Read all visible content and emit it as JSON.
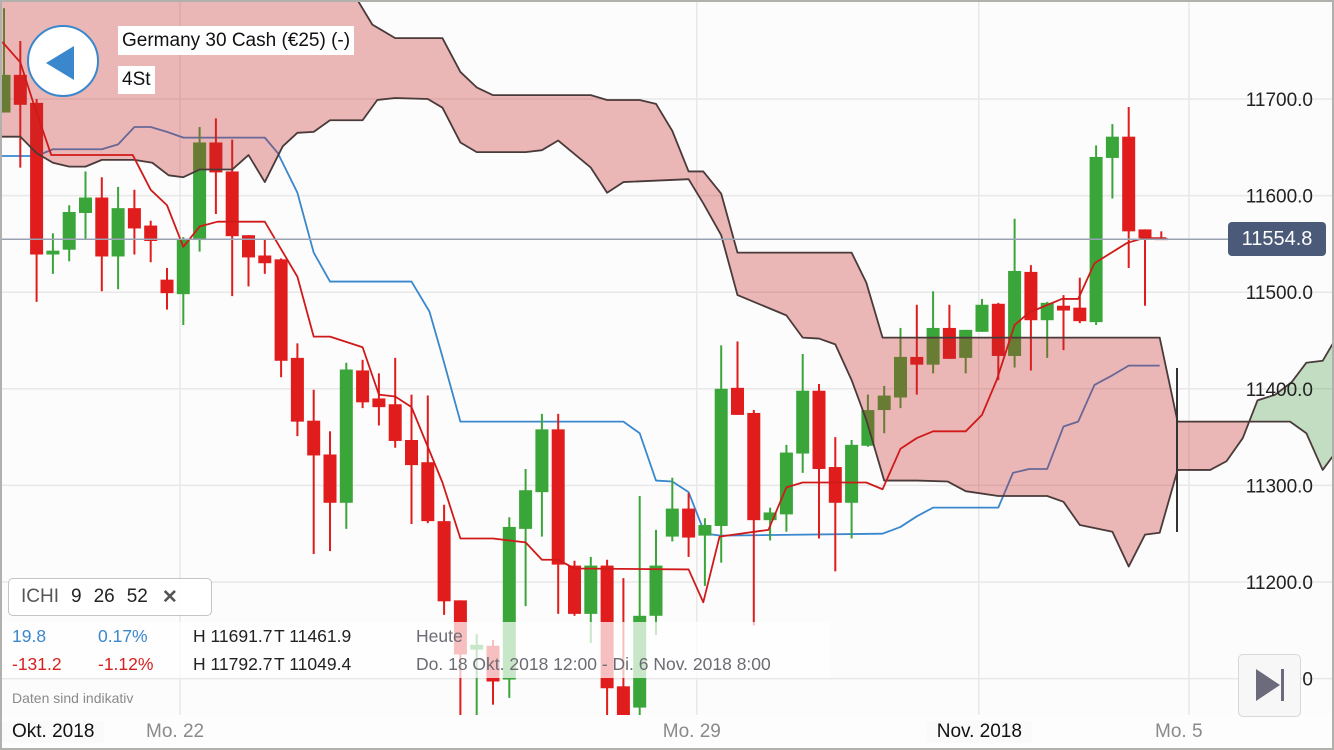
{
  "header": {
    "instrument_title": "Germany 30 Cash (€25) (-)",
    "timeframe": "4St",
    "back_icon": "triangle-left-icon"
  },
  "indicator": {
    "name": "ICHI",
    "param1": "9",
    "param2": "26",
    "param3": "52",
    "close_symbol": "✕"
  },
  "stats": {
    "today": {
      "change": "19.8",
      "change_pct": "0.17%",
      "high": "H 11691.7",
      "low": "T 11461.9",
      "period": "Heute"
    },
    "range": {
      "change": "-131.2",
      "change_pct": "-1.12%",
      "high": "H 11792.7",
      "low": "T 11049.4",
      "period": "Do. 18 Okt. 2018 12:00 - Di. 6 Nov. 2018 8:00"
    }
  },
  "disclaimer": "Daten sind indikativ",
  "last_price_label": "11554.8",
  "colors": {
    "up": "#3aa63a",
    "down": "#e01c1c",
    "tenkan": "#d01a1a",
    "kijun": "#3a87cd",
    "cloud_bearish": "#c62b2b",
    "cloud_bullish": "#3c963c",
    "cloud_edge": "#4a3a3a",
    "last_price": "#4a5a78"
  },
  "chart_data": {
    "type": "candlestick",
    "x_unit": "4-hour bar index",
    "y_ticks": [
      "11700.0",
      "11600.0",
      "11500.0",
      "11400.0",
      "11300.0",
      "11200.0",
      "11100.0"
    ],
    "y_tick_values": [
      11700,
      11600,
      11500,
      11400,
      11300,
      11200,
      11100
    ],
    "x_ticks": [
      {
        "label": "Okt. 2018",
        "bar": -1,
        "major": true
      },
      {
        "label": "Mo. 22",
        "bar": 10.8,
        "major": false
      },
      {
        "label": "Mo. 29",
        "bar": 42.5,
        "major": false
      },
      {
        "label": "Nov. 2018",
        "bar": 59.8,
        "major": true
      },
      {
        "label": "Mo. 5",
        "bar": 72.7,
        "major": false
      }
    ],
    "grid": true,
    "last_price": 11554.8,
    "ohlc_order": [
      "open",
      "high",
      "low",
      "close"
    ],
    "candles": [
      [
        11686,
        11794,
        11686,
        11725
      ],
      [
        11725,
        11760,
        11629,
        11694
      ],
      [
        11696,
        11700,
        11490,
        11539
      ],
      [
        11539,
        11561,
        11519,
        11543
      ],
      [
        11544,
        11590,
        11532,
        11583
      ],
      [
        11582,
        11625,
        11555,
        11598
      ],
      [
        11598,
        11619,
        11501,
        11537
      ],
      [
        11537,
        11609,
        11503,
        11587
      ],
      [
        11587,
        11606,
        11539,
        11566
      ],
      [
        11569,
        11574,
        11531,
        11553
      ],
      [
        11513,
        11525,
        11482,
        11499
      ],
      [
        11498,
        11557,
        11466,
        11554
      ],
      [
        11554,
        11671,
        11542,
        11655
      ],
      [
        11655,
        11680,
        11581,
        11624
      ],
      [
        11625,
        11658,
        11496,
        11558
      ],
      [
        11559,
        11559,
        11506,
        11536
      ],
      [
        11538,
        11555,
        11519,
        11530
      ],
      [
        11534,
        11535,
        11412,
        11429
      ],
      [
        11432,
        11447,
        11351,
        11366
      ],
      [
        11367,
        11399,
        11229,
        11331
      ],
      [
        11332,
        11356,
        11232,
        11282
      ],
      [
        11282,
        11427,
        11255,
        11420
      ],
      [
        11419,
        11430,
        11380,
        11386
      ],
      [
        11390,
        11416,
        11362,
        11381
      ],
      [
        11384,
        11432,
        11339,
        11346
      ],
      [
        11347,
        11394,
        11260,
        11321
      ],
      [
        11324,
        11393,
        11261,
        11263
      ],
      [
        11263,
        11280,
        11166,
        11180
      ],
      [
        11181,
        11181,
        11055,
        11125
      ],
      [
        11130,
        11146,
        11060,
        11135
      ],
      [
        11134,
        11140,
        11073,
        11097
      ],
      [
        11099,
        11267,
        11080,
        11257
      ],
      [
        11255,
        11317,
        11175,
        11295
      ],
      [
        11293,
        11374,
        11247,
        11358
      ],
      [
        11358,
        11374,
        11167,
        11218
      ],
      [
        11217,
        11222,
        11165,
        11167
      ],
      [
        11167,
        11226,
        11137,
        11217
      ],
      [
        11217,
        11223,
        11060,
        11090
      ],
      [
        11092,
        11204,
        11049.4,
        11055
      ],
      [
        11070,
        11289,
        11055,
        11165
      ],
      [
        11165,
        11254,
        11145,
        11217
      ],
      [
        11247,
        11308,
        11242,
        11276
      ],
      [
        11276,
        11292,
        11226,
        11246
      ],
      [
        11248,
        11266,
        11196,
        11259
      ],
      [
        11258,
        11445,
        11220,
        11400
      ],
      [
        11401,
        11449,
        11373,
        11373
      ],
      [
        11375,
        11378,
        11155,
        11264
      ],
      [
        11264,
        11277,
        11243,
        11272
      ],
      [
        11270,
        11342,
        11252,
        11334
      ],
      [
        11333,
        11436,
        11313,
        11398
      ],
      [
        11398,
        11405,
        11245,
        11317
      ],
      [
        11319,
        11350,
        11211,
        11282
      ],
      [
        11282,
        11347,
        11245,
        11342
      ],
      [
        11341,
        11394,
        11340,
        11378
      ],
      [
        11378,
        11403,
        11354,
        11393
      ],
      [
        11391,
        11463,
        11380,
        11433
      ],
      [
        11433,
        11487,
        11394,
        11425
      ],
      [
        11425,
        11501,
        11416,
        11463
      ],
      [
        11463,
        11487,
        11431,
        11431
      ],
      [
        11432,
        11461,
        11416,
        11461
      ],
      [
        11459,
        11493,
        11459,
        11487
      ],
      [
        11488,
        11489,
        11409,
        11434
      ],
      [
        11434,
        11576,
        11422,
        11522
      ],
      [
        11521,
        11528,
        11419,
        11471
      ],
      [
        11471,
        11490,
        11432,
        11489
      ],
      [
        11486,
        11497,
        11440,
        11481
      ],
      [
        11484,
        11515,
        11468,
        11470
      ],
      [
        11469,
        11652,
        11466,
        11640
      ],
      [
        11639,
        11674,
        11597,
        11661
      ],
      [
        11661,
        11691.7,
        11525,
        11563
      ],
      [
        11565,
        11565,
        11486,
        11556
      ],
      [
        11556,
        11563,
        11554,
        11554.8
      ]
    ],
    "tenkan_sen": [
      [
        -0.1,
        11759
      ],
      [
        1,
        11738
      ],
      [
        1.8,
        11696
      ],
      [
        2.9,
        11642
      ],
      [
        7.9,
        11642
      ],
      [
        9,
        11606
      ],
      [
        10,
        11590
      ],
      [
        11,
        11547
      ],
      [
        12,
        11568
      ],
      [
        13.1,
        11573
      ],
      [
        16,
        11573
      ],
      [
        18,
        11516
      ],
      [
        19,
        11454
      ],
      [
        20,
        11454
      ],
      [
        22,
        11443
      ],
      [
        23,
        11394
      ],
      [
        24,
        11392
      ],
      [
        25,
        11381
      ],
      [
        26.9,
        11303
      ],
      [
        28,
        11245
      ],
      [
        30,
        11245
      ],
      [
        32,
        11241
      ],
      [
        33,
        11223
      ],
      [
        34,
        11223
      ],
      [
        35,
        11214
      ],
      [
        42,
        11213
      ],
      [
        42.9,
        11179
      ],
      [
        43.9,
        11247
      ],
      [
        46.9,
        11254
      ],
      [
        48,
        11298
      ],
      [
        49,
        11303
      ],
      [
        52.9,
        11303
      ],
      [
        53.9,
        11296
      ],
      [
        55,
        11338
      ],
      [
        56,
        11349
      ],
      [
        57,
        11356
      ],
      [
        59,
        11356
      ],
      [
        60,
        11373
      ],
      [
        60.9,
        11409
      ],
      [
        62,
        11466
      ],
      [
        62.9,
        11479
      ],
      [
        64.9,
        11493
      ],
      [
        65.9,
        11493
      ],
      [
        66.9,
        11530
      ],
      [
        68.9,
        11551
      ],
      [
        69.9,
        11556
      ],
      [
        71.3,
        11556
      ]
    ],
    "kijun_sen": [
      [
        -0.2,
        11641
      ],
      [
        2,
        11641
      ],
      [
        3,
        11648
      ],
      [
        6,
        11648
      ],
      [
        7,
        11653
      ],
      [
        8,
        11671
      ],
      [
        9,
        11671
      ],
      [
        10,
        11666
      ],
      [
        11,
        11660
      ],
      [
        16,
        11660
      ],
      [
        16.8,
        11644
      ],
      [
        18,
        11603
      ],
      [
        19,
        11541
      ],
      [
        20,
        11511
      ],
      [
        25,
        11511
      ],
      [
        26.1,
        11480
      ],
      [
        26.9,
        11433
      ],
      [
        28,
        11366
      ],
      [
        38,
        11366
      ],
      [
        39,
        11354
      ],
      [
        40,
        11305
      ],
      [
        41,
        11304
      ],
      [
        42,
        11293
      ],
      [
        43,
        11250
      ],
      [
        44,
        11248
      ],
      [
        53.9,
        11250
      ],
      [
        55,
        11257
      ],
      [
        56,
        11268
      ],
      [
        57,
        11277
      ],
      [
        61,
        11277
      ],
      [
        61.9,
        11313
      ],
      [
        62.9,
        11317
      ],
      [
        64,
        11317
      ],
      [
        65,
        11361
      ],
      [
        65.9,
        11366
      ],
      [
        66.9,
        11404
      ],
      [
        68,
        11414
      ],
      [
        69,
        11424
      ],
      [
        70.9,
        11424
      ]
    ],
    "senkou_span_a": [
      [
        -0.2,
        11661
      ],
      [
        1,
        11661
      ],
      [
        2,
        11644
      ],
      [
        3,
        11634
      ],
      [
        4,
        11630
      ],
      [
        5,
        11630
      ],
      [
        6,
        11637
      ],
      [
        8,
        11637
      ],
      [
        9.1,
        11634
      ],
      [
        10.1,
        11621
      ],
      [
        11,
        11619
      ],
      [
        12,
        11627
      ],
      [
        14,
        11627
      ],
      [
        15,
        11642
      ],
      [
        16,
        11614
      ],
      [
        17.1,
        11651
      ],
      [
        18,
        11665
      ],
      [
        19,
        11666
      ],
      [
        20,
        11678
      ],
      [
        22,
        11678
      ],
      [
        22.9,
        11699
      ],
      [
        24,
        11701
      ],
      [
        26,
        11700
      ],
      [
        26.9,
        11691
      ],
      [
        28,
        11655
      ],
      [
        29,
        11645
      ],
      [
        32,
        11645
      ],
      [
        33,
        11647
      ],
      [
        34,
        11657
      ],
      [
        36,
        11629
      ],
      [
        37,
        11603
      ],
      [
        38,
        11614
      ],
      [
        42,
        11617
      ],
      [
        42.9,
        11592
      ],
      [
        44,
        11559
      ],
      [
        45,
        11497
      ],
      [
        47,
        11483
      ],
      [
        48,
        11476
      ],
      [
        49,
        11453
      ],
      [
        50,
        11452
      ],
      [
        51,
        11446
      ],
      [
        52,
        11409
      ],
      [
        52.9,
        11368
      ],
      [
        54,
        11305
      ],
      [
        56,
        11305
      ],
      [
        57.9,
        11304
      ],
      [
        59,
        11294
      ],
      [
        61,
        11289
      ],
      [
        64,
        11289
      ],
      [
        65,
        11283
      ],
      [
        66,
        11259
      ],
      [
        68,
        11252
      ],
      [
        69,
        11216
      ],
      [
        70,
        11249
      ],
      [
        70.9,
        11251
      ],
      [
        72,
        11316
      ],
      [
        74,
        11316
      ],
      [
        75,
        11325
      ],
      [
        76,
        11349
      ],
      [
        76.9,
        11388
      ],
      [
        78,
        11394
      ],
      [
        79,
        11407
      ],
      [
        79.9,
        11427
      ],
      [
        80.9,
        11429
      ],
      [
        81.6,
        11449
      ]
    ],
    "senkou_span_b": [
      [
        -0.2,
        11844
      ],
      [
        20.6,
        11844
      ],
      [
        21.7,
        11802
      ],
      [
        22.6,
        11777
      ],
      [
        24,
        11763
      ],
      [
        26.9,
        11763
      ],
      [
        28,
        11728
      ],
      [
        29,
        11712
      ],
      [
        30,
        11704
      ],
      [
        36,
        11704
      ],
      [
        37,
        11699
      ],
      [
        39,
        11699
      ],
      [
        40,
        11695
      ],
      [
        41,
        11667
      ],
      [
        42,
        11625
      ],
      [
        42.9,
        11625
      ],
      [
        44,
        11602
      ],
      [
        45,
        11541
      ],
      [
        52,
        11541
      ],
      [
        52.9,
        11510
      ],
      [
        53.9,
        11453
      ],
      [
        70.9,
        11453
      ],
      [
        72,
        11366
      ],
      [
        78.9,
        11366
      ],
      [
        79.9,
        11354
      ],
      [
        80.9,
        11316
      ],
      [
        81.6,
        11332
      ]
    ]
  }
}
